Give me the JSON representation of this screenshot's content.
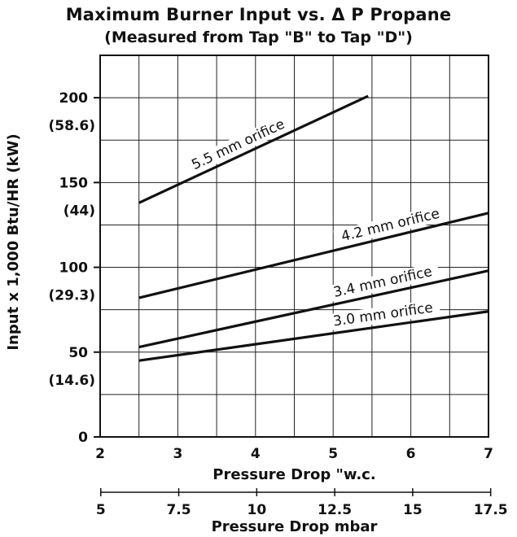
{
  "chart_data": {
    "type": "line",
    "title": "Maximum Burner Input vs. Δ P Propane",
    "subtitle": "(Measured from Tap \"B\" to Tap \"D\")",
    "xlabel": "Pressure Drop \"w.c.",
    "xlabel2": "Pressure Drop mbar",
    "ylabel": "Input x 1,000 Btu/HR (kW)",
    "xlim": [
      2,
      7
    ],
    "ylim": [
      0,
      225
    ],
    "x_ticks": [
      "2",
      "3",
      "4",
      "5",
      "6",
      "7"
    ],
    "x2_ticks": [
      {
        "label": "5",
        "x": 2.008
      },
      {
        "label": "7.5",
        "x": 3.012
      },
      {
        "label": "10",
        "x": 4.016
      },
      {
        "label": "12.5",
        "x": 5.02
      },
      {
        "label": "15",
        "x": 6.024
      },
      {
        "label": "17.5",
        "x": 7.028
      }
    ],
    "y_ticks": [
      {
        "value": 0,
        "label": "0",
        "sub": ""
      },
      {
        "value": 50,
        "label": "50",
        "sub": "(14.6)"
      },
      {
        "value": 100,
        "label": "100",
        "sub": "(29.3)"
      },
      {
        "value": 150,
        "label": "150",
        "sub": "(44)"
      },
      {
        "value": 200,
        "label": "200",
        "sub": "(58.6)"
      }
    ],
    "grid": true,
    "series": [
      {
        "name": "5.5 mm orifice",
        "x": [
          2.5,
          5.45
        ],
        "y": [
          138,
          201
        ]
      },
      {
        "name": "4.2 mm orifice",
        "x": [
          2.5,
          7.0
        ],
        "y": [
          82,
          132
        ]
      },
      {
        "name": "3.4 mm orifice",
        "x": [
          2.5,
          7.0
        ],
        "y": [
          53,
          98
        ]
      },
      {
        "name": "3.0 mm orifice",
        "x": [
          2.5,
          7.0
        ],
        "y": [
          45,
          74
        ]
      }
    ]
  }
}
